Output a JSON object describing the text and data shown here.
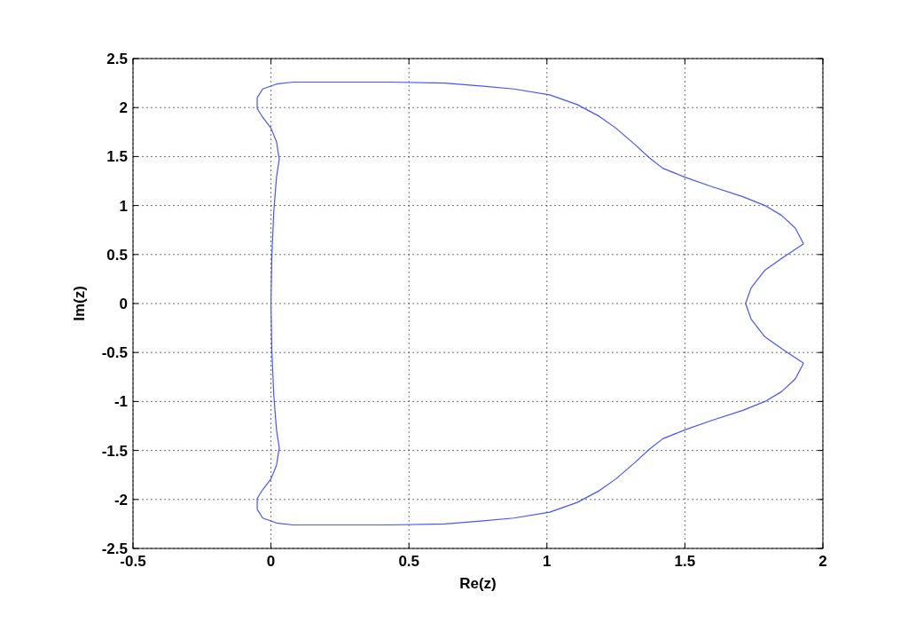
{
  "chart_data": {
    "type": "line",
    "xlabel": "Re(z)",
    "ylabel": "Im(z)",
    "xlim": [
      -0.5,
      2
    ],
    "ylim": [
      -2.5,
      2.5
    ],
    "xticks": [
      -0.5,
      0,
      0.5,
      1,
      1.5,
      2
    ],
    "yticks": [
      -2.5,
      -2,
      -1.5,
      -1,
      -0.5,
      0,
      0.5,
      1,
      1.5,
      2,
      2.5
    ],
    "grid": true,
    "marker": "none",
    "line_style": "solid",
    "series": [
      {
        "color": "#4455ff",
        "x": [
          -0.05,
          -0.03,
          0.02,
          0.08,
          0.24,
          0.43,
          0.63,
          0.76,
          0.88,
          1.01,
          1.11,
          1.19,
          1.25,
          1.32,
          1.37,
          1.42,
          1.5,
          1.59,
          1.71,
          1.79,
          1.85,
          1.9,
          1.93
        ],
        "values": [
          2.1,
          2.19,
          2.24,
          2.26,
          2.26,
          2.26,
          2.25,
          2.22,
          2.19,
          2.13,
          2.03,
          1.91,
          1.79,
          1.62,
          1.49,
          1.38,
          1.29,
          1.2,
          1.09,
          1,
          0.9,
          0.77,
          0.61
        ]
      },
      {
        "color": "#4455ff",
        "x": [
          1.93,
          1.85,
          1.79,
          1.74,
          1.72,
          1.74,
          1.79,
          1.85,
          1.93
        ],
        "values": [
          0.61,
          0.46,
          0.34,
          0.16,
          0,
          -0.16,
          -0.34,
          -0.46,
          -0.61
        ]
      },
      {
        "color": "#4455ff",
        "x": [
          -0.05,
          -0.03,
          0.02,
          0.08,
          0.24,
          0.43,
          0.63,
          0.76,
          0.88,
          1.01,
          1.11,
          1.19,
          1.25,
          1.32,
          1.37,
          1.42,
          1.5,
          1.59,
          1.71,
          1.79,
          1.85,
          1.9,
          1.93
        ],
        "values": [
          -2.1,
          -2.19,
          -2.24,
          -2.26,
          -2.26,
          -2.26,
          -2.25,
          -2.22,
          -2.19,
          -2.13,
          -2.03,
          -1.91,
          -1.79,
          -1.62,
          -1.49,
          -1.38,
          -1.29,
          -1.2,
          -1.09,
          -1,
          -0.9,
          -0.77,
          -0.61
        ]
      },
      {
        "color": "#4455ff",
        "x": [
          -0.05,
          -0.05,
          -0.03,
          0,
          0.02,
          0.03,
          0.02,
          0.01,
          0.003,
          0,
          0.003,
          0.01,
          0.02,
          0.03,
          0.02,
          0,
          -0.03,
          -0.05,
          -0.05
        ],
        "values": [
          2.1,
          1.99,
          1.9,
          1.79,
          1.65,
          1.47,
          1.29,
          0.93,
          0.48,
          0,
          -0.48,
          -0.93,
          -1.29,
          -1.47,
          -1.65,
          -1.79,
          -1.9,
          -1.99,
          -2.1
        ]
      }
    ]
  }
}
